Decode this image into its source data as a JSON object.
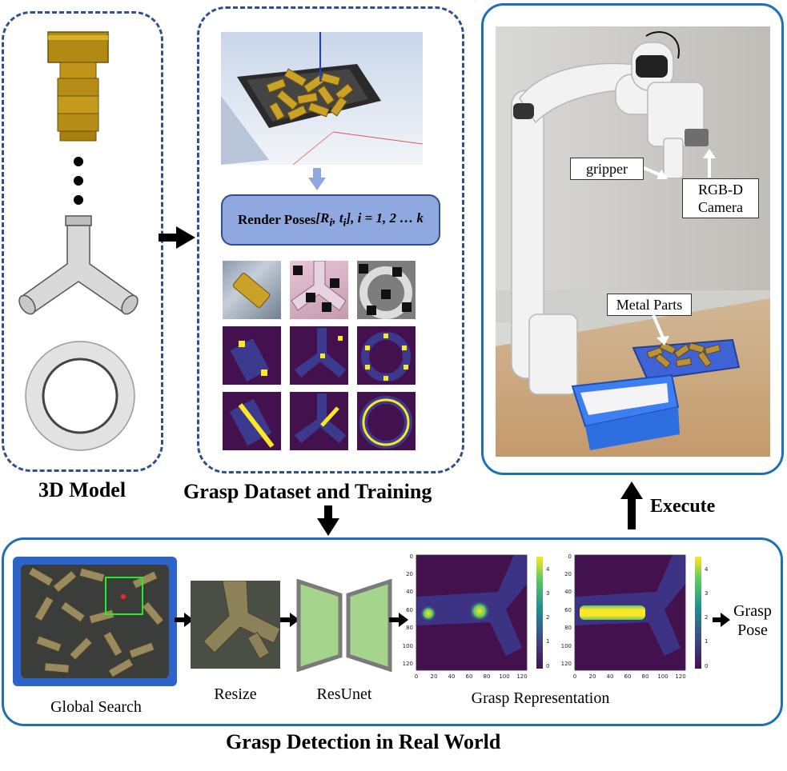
{
  "sections": {
    "model_title": "3D Model",
    "dataset_title": "Grasp Dataset and Training",
    "detection_title": "Grasp Detection in Real World",
    "execute_label": "Execute"
  },
  "render_box": {
    "prefix": "Render Poses ",
    "formula": "[R",
    "formula_sub_i": "i",
    "formula_mid": ", t",
    "formula_sub_i2": "i",
    "formula_end": "], i = 1, 2 … k"
  },
  "robot_labels": {
    "gripper": "gripper",
    "camera_line1": "RGB-D",
    "camera_line2": "Camera",
    "parts": "Metal Parts"
  },
  "pipeline": {
    "global_search": "Global Search",
    "resize": "Resize",
    "resunet": "ResUnet",
    "grasp_representation": "Grasp Representation",
    "grasp_pose_line1": "Grasp",
    "grasp_pose_line2": "Pose"
  },
  "heatmap_axes": {
    "y_ticks": [
      "0",
      "20",
      "40",
      "60",
      "80",
      "100",
      "120"
    ],
    "x_ticks": [
      "0",
      "20",
      "40",
      "60",
      "80",
      "100",
      "120"
    ],
    "cbar1_ticks": [
      "0",
      "1",
      "2",
      "3",
      "4"
    ],
    "cbar2_ticks": [
      "0",
      "1",
      "2",
      "3",
      "4"
    ]
  },
  "colors": {
    "dashed_border": "#2f4f8f",
    "solid_border": "#1f6fb5",
    "render_fill": "#8fa9e0",
    "heatmap_background": "#44114f",
    "heatmap_hot": "#fde725",
    "resunet_fill": "#a5d48c"
  }
}
